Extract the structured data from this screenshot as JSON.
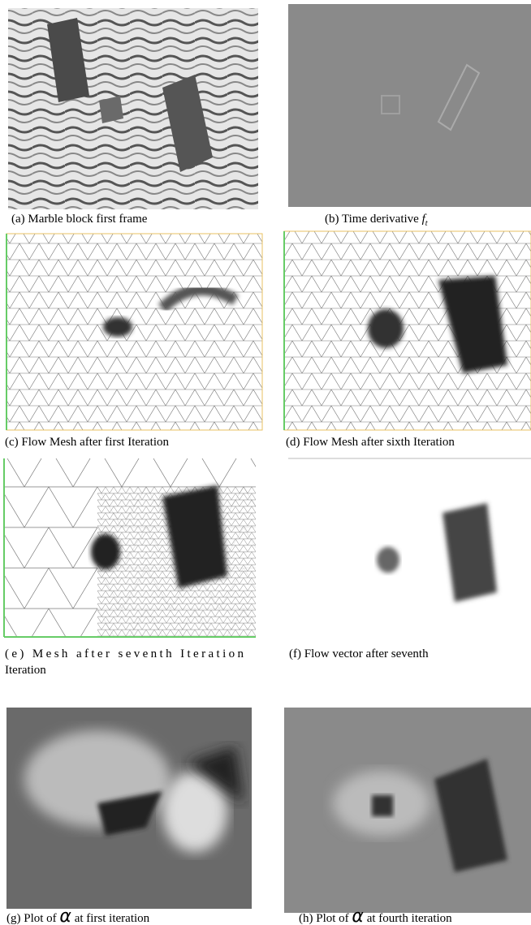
{
  "figure": {
    "panels": [
      {
        "caption": "(a) Marble block first frame"
      },
      {
        "caption": "(b)  Time derivative",
        "symbol": "f",
        "subscript": "t"
      },
      {
        "caption": "(c) Flow Mesh after first Iteration"
      },
      {
        "caption": "(d) Flow Mesh after sixth  Iteration"
      },
      {
        "caption_lines": [
          "(e) Mesh after seventh  Iteration",
          "Iteration"
        ]
      },
      {
        "caption": "(f)  Flow vector  after seventh"
      },
      {
        "caption": "(g) Plot of",
        "symbol": "α",
        "caption_end": "at first iteration"
      },
      {
        "caption": "(h) Plot of",
        "symbol": "α",
        "caption_end": "at fourth iteration"
      }
    ]
  }
}
